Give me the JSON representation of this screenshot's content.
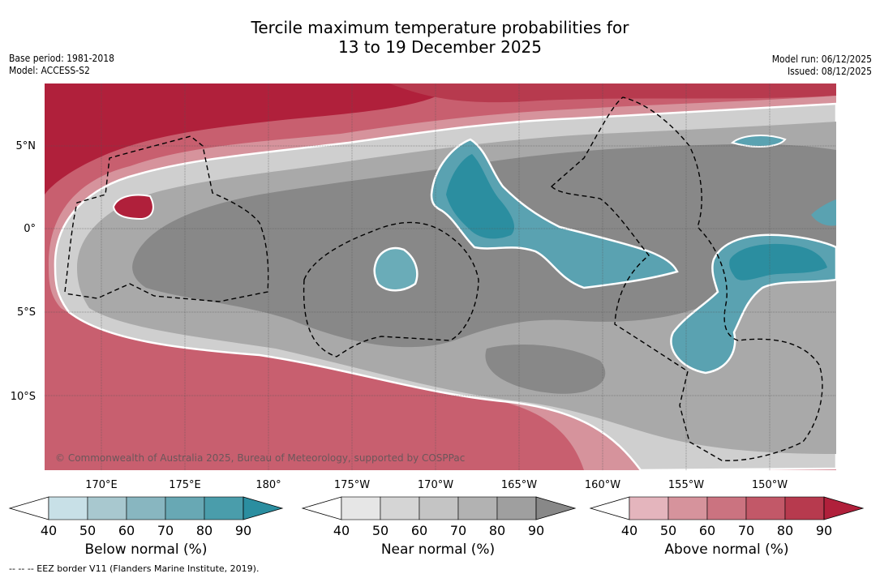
{
  "title_line1": "Tercile maximum temperature probabilities for",
  "title_line2": "13 to 19 December 2025",
  "meta_left": {
    "base_period": "Base period: 1981-2018",
    "model": "Model: ACCESS-S2"
  },
  "meta_right": {
    "model_run": "Model run: 06/12/2025",
    "issued": "Issued: 08/12/2025"
  },
  "copyright": "© Commonwealth of Australia 2025, Bureau of Meteorology, supported by COSPPac",
  "footnote": "-- -- -- EEZ border V11 (Flanders Marine Institute, 2019).",
  "lat_labels": [
    "5°N",
    "0°",
    "5°S",
    "10°S"
  ],
  "lon_labels": [
    "170°E",
    "175°E",
    "180°",
    "175°W",
    "170°W",
    "165°W",
    "160°W",
    "155°W",
    "150°W"
  ],
  "colorbars": [
    {
      "title": "Below normal (%)",
      "ticks": [
        "40",
        "50",
        "60",
        "70",
        "80",
        "90"
      ],
      "colors": [
        "#c8e0e7",
        "#a8c8cf",
        "#88b6c0",
        "#68a8b4",
        "#4a9dab",
        "#2b8ea0"
      ]
    },
    {
      "title": "Near normal (%)",
      "ticks": [
        "40",
        "50",
        "60",
        "70",
        "80",
        "90"
      ],
      "colors": [
        "#e6e6e6",
        "#d5d5d5",
        "#c4c4c4",
        "#b2b2b2",
        "#9f9f9f",
        "#888888"
      ]
    },
    {
      "title": "Above normal (%)",
      "ticks": [
        "40",
        "50",
        "60",
        "70",
        "80",
        "90"
      ],
      "colors": [
        "#e4b5bd",
        "#d6939c",
        "#cb7380",
        "#c25868",
        "#b73a4e",
        "#b0203b"
      ]
    }
  ]
}
